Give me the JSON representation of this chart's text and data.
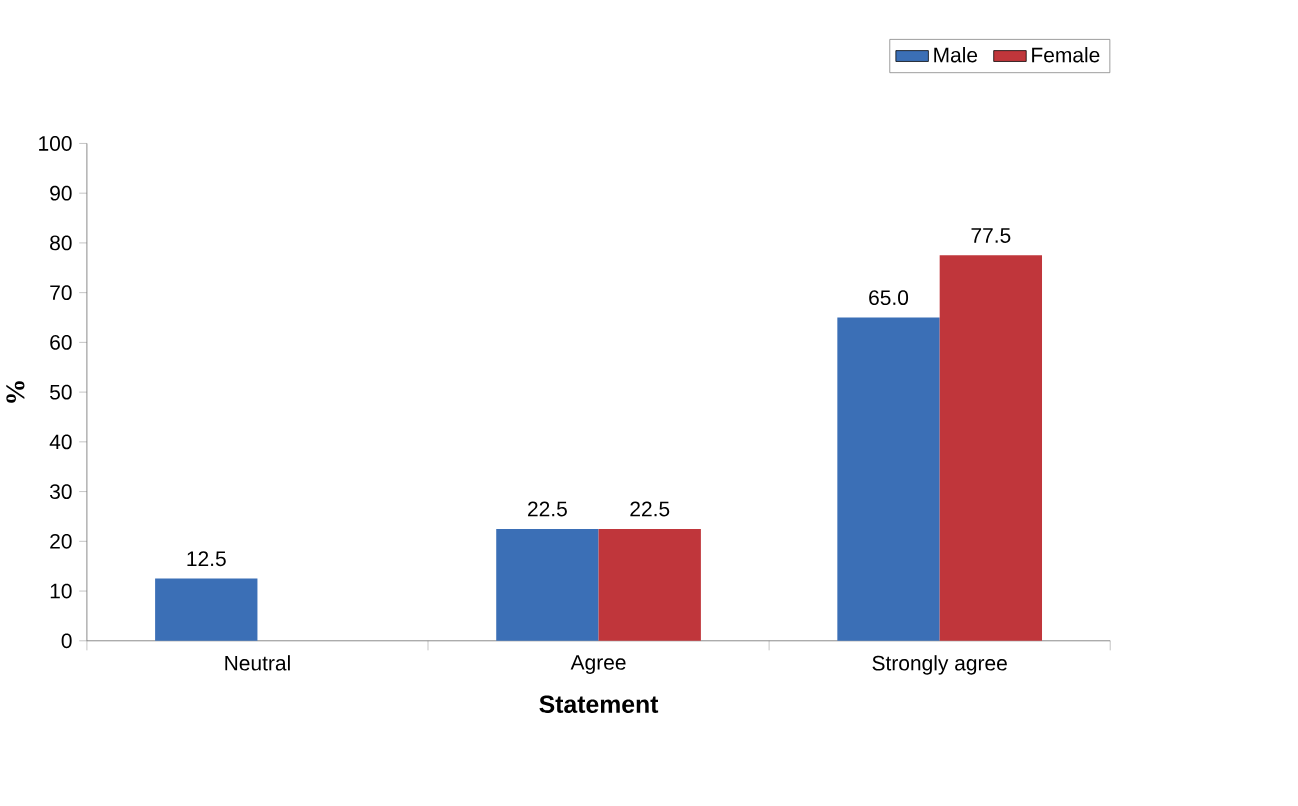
{
  "chart_data": {
    "type": "bar",
    "xlabel": "Statement",
    "ylabel": "%",
    "categories": [
      "Neutral",
      "Agree",
      "Strongly agree"
    ],
    "series": [
      {
        "name": "Male",
        "color": "#3b6fb6",
        "values": [
          12.5,
          22.5,
          65.0
        ],
        "value_labels": [
          "12.5",
          "22.5",
          "65.0"
        ]
      },
      {
        "name": "Female",
        "color": "#c0363b",
        "values": [
          null,
          22.5,
          77.5
        ],
        "value_labels": [
          null,
          "22.5",
          "77.5"
        ]
      }
    ],
    "ylim": [
      0,
      100
    ],
    "yticks": [
      0,
      10,
      20,
      30,
      40,
      50,
      60,
      70,
      80,
      90,
      100
    ],
    "legend": "top right",
    "grid": false
  }
}
